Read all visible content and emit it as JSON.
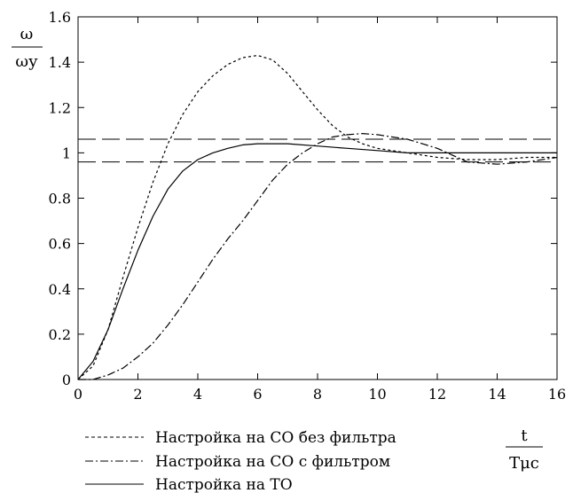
{
  "chart_data": {
    "type": "line",
    "title": "",
    "ylabel": {
      "numerator": "ω",
      "denominator": "ωу"
    },
    "xlabel": {
      "numerator": "t",
      "denominator": "Tμc"
    },
    "xlim": [
      0,
      16
    ],
    "ylim": [
      0,
      1.6
    ],
    "xticks": [
      "0",
      "2",
      "4",
      "6",
      "8",
      "10",
      "12",
      "14",
      "16"
    ],
    "yticks": [
      "0",
      "0.2",
      "0.4",
      "0.6",
      "0.8",
      "1",
      "1.2",
      "1.4",
      "1.6"
    ],
    "grid": false,
    "legend_position": "bottom-left",
    "reference_lines": [
      1.06,
      0.96
    ],
    "series": [
      {
        "name": "Настройка на СО без фильтра",
        "style": "dotted",
        "x": [
          0,
          0.5,
          1,
          1.5,
          2,
          2.5,
          3,
          3.5,
          4,
          4.5,
          5,
          5.5,
          6,
          6.5,
          7,
          7.5,
          8,
          8.5,
          9,
          9.5,
          10,
          11,
          12,
          13,
          14,
          15,
          16
        ],
        "y": [
          0,
          0.06,
          0.22,
          0.45,
          0.67,
          0.87,
          1.04,
          1.17,
          1.27,
          1.34,
          1.39,
          1.42,
          1.43,
          1.41,
          1.35,
          1.27,
          1.19,
          1.12,
          1.07,
          1.04,
          1.02,
          1.0,
          0.98,
          0.97,
          0.97,
          0.98,
          0.98
        ]
      },
      {
        "name": "Настройка на СО с фильтром",
        "style": "dashdot",
        "x": [
          0,
          0.5,
          1,
          1.5,
          2,
          2.5,
          3,
          3.5,
          4,
          4.5,
          5,
          5.5,
          6,
          6.5,
          7,
          7.5,
          8,
          8.5,
          9,
          9.5,
          10,
          10.5,
          11,
          11.5,
          12,
          12.5,
          13,
          14,
          15,
          16
        ],
        "y": [
          0,
          0.0,
          0.02,
          0.05,
          0.1,
          0.16,
          0.24,
          0.33,
          0.43,
          0.53,
          0.62,
          0.7,
          0.79,
          0.88,
          0.95,
          1.0,
          1.04,
          1.07,
          1.08,
          1.085,
          1.08,
          1.07,
          1.06,
          1.04,
          1.02,
          0.99,
          0.96,
          0.95,
          0.96,
          0.98
        ]
      },
      {
        "name": "Настройка на ТО",
        "style": "solid",
        "x": [
          0,
          0.5,
          1,
          1.5,
          2,
          2.5,
          3,
          3.5,
          4,
          4.5,
          5,
          5.5,
          6,
          7,
          8,
          9,
          10,
          11,
          12,
          13,
          14,
          15,
          16
        ],
        "y": [
          0,
          0.08,
          0.22,
          0.4,
          0.57,
          0.72,
          0.84,
          0.92,
          0.97,
          1.0,
          1.02,
          1.035,
          1.04,
          1.04,
          1.03,
          1.02,
          1.01,
          1.0,
          1.0,
          1.0,
          1.0,
          1.0,
          1.0
        ]
      }
    ]
  }
}
